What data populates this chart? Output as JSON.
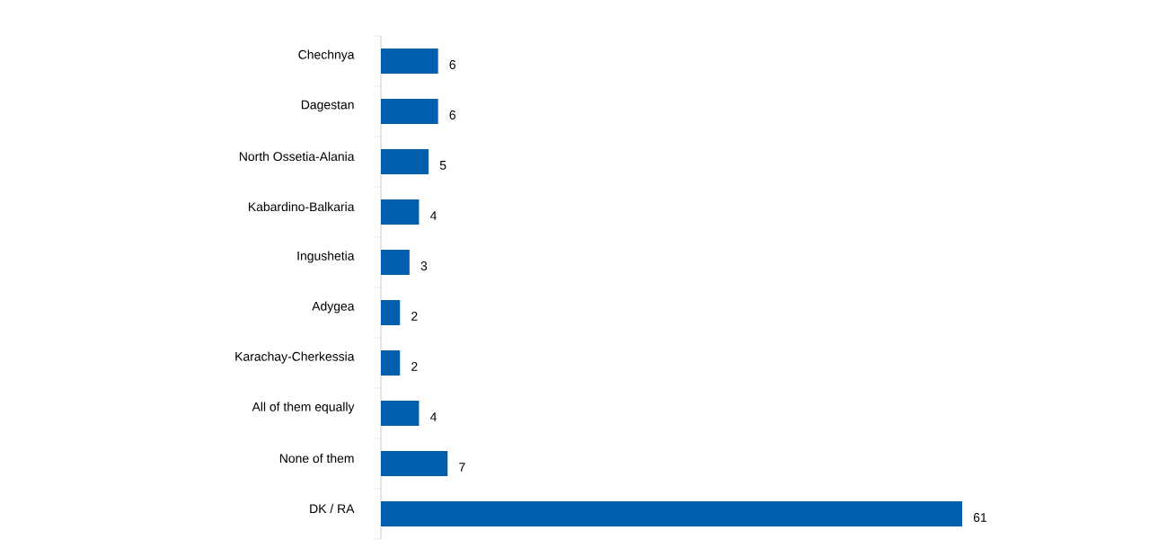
{
  "chart_data": {
    "type": "bar",
    "orientation": "horizontal",
    "categories": [
      "Chechnya",
      "Dagestan",
      "North Ossetia-Alania",
      "Kabardino-Balkaria",
      "Ingushetia",
      "Adygea",
      "Karachay-Cherkessia",
      "All of them equally",
      "None of them",
      "DK / RA"
    ],
    "values": [
      6,
      6,
      5,
      4,
      3,
      2,
      2,
      4,
      7,
      61
    ],
    "color": "#005eac",
    "data_labels": true
  }
}
